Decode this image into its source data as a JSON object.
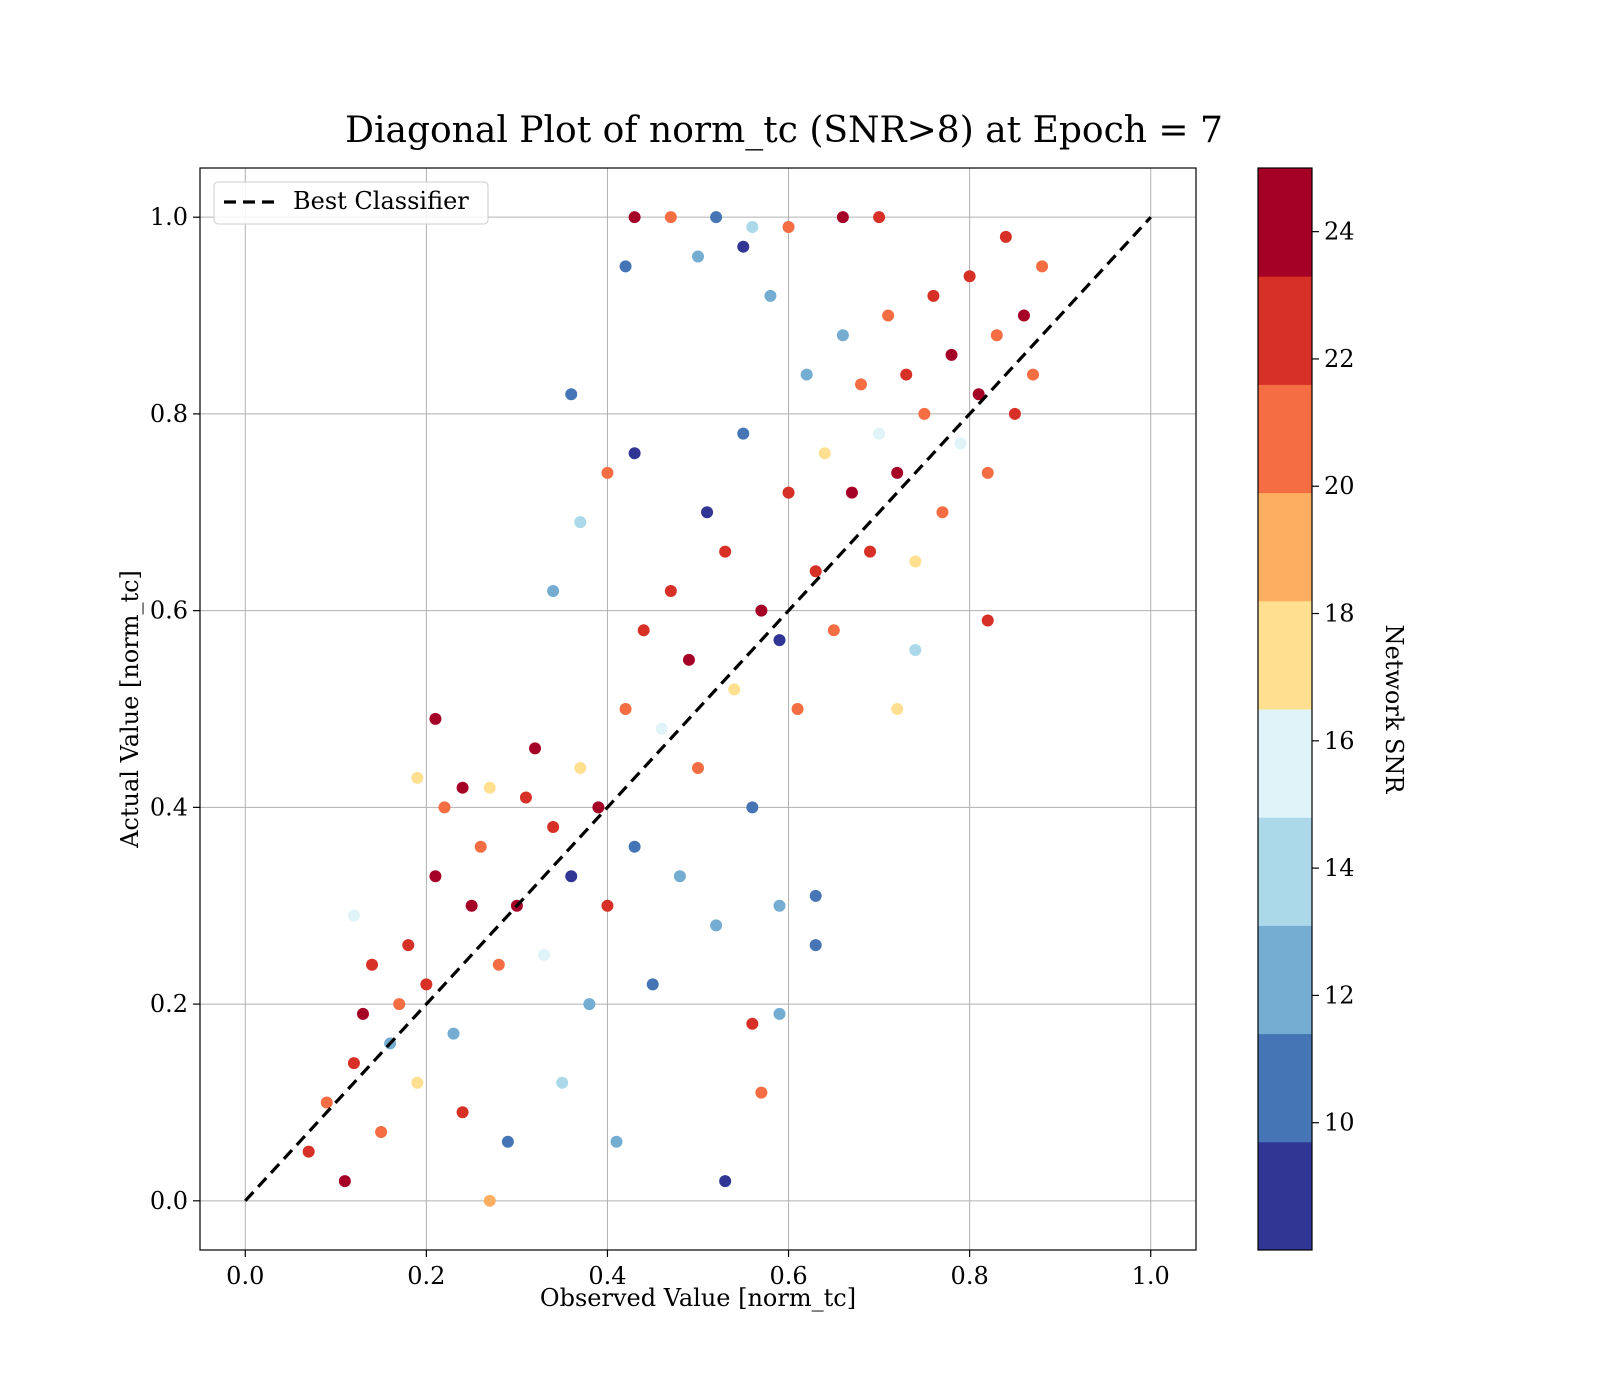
{
  "chart_data": {
    "type": "scatter",
    "title": "Diagonal Plot of norm_tc (SNR>8) at Epoch = 7",
    "xlabel": "Observed Value [norm_tc]",
    "ylabel": "Actual Value [norm_tc]",
    "xlim": [
      -0.05,
      1.05
    ],
    "ylim": [
      -0.05,
      1.05
    ],
    "xticks": [
      0.0,
      0.2,
      0.4,
      0.6,
      0.8,
      1.0
    ],
    "yticks": [
      0.0,
      0.2,
      0.4,
      0.6,
      0.8,
      1.0
    ],
    "x_tick_labels": [
      "0.0",
      "0.2",
      "0.4",
      "0.6",
      "0.8",
      "1.0"
    ],
    "y_tick_labels": [
      "0.0",
      "0.2",
      "0.4",
      "0.6",
      "0.8",
      "1.0"
    ],
    "grid": true,
    "legend": {
      "placement": "upper-left",
      "entries": [
        {
          "label": "Best Classifier",
          "style": "dashed",
          "color": "#000000"
        }
      ]
    },
    "reference_line": {
      "name": "Best Classifier",
      "x": [
        0.0,
        1.0
      ],
      "y": [
        0.0,
        1.0
      ]
    },
    "colorbar": {
      "label": "Network SNR",
      "range": [
        8,
        25
      ],
      "ticks": [
        10,
        12,
        14,
        16,
        18,
        20,
        22,
        24
      ],
      "tick_labels": [
        "10",
        "12",
        "14",
        "16",
        "18",
        "20",
        "22",
        "24"
      ],
      "colors": [
        "#313695",
        "#4575b4",
        "#74add1",
        "#abd9e9",
        "#e0f3f8",
        "#fee090",
        "#fdae61",
        "#f46d43",
        "#d73027",
        "#a50026"
      ]
    },
    "series": [
      {
        "points": [
          [
            0.11,
            0.02,
            24
          ],
          [
            0.07,
            0.05,
            22
          ],
          [
            0.09,
            0.1,
            20
          ],
          [
            0.12,
            0.14,
            23
          ],
          [
            0.13,
            0.19,
            24
          ],
          [
            0.14,
            0.24,
            22
          ],
          [
            0.15,
            0.07,
            20
          ],
          [
            0.16,
            0.16,
            12
          ],
          [
            0.17,
            0.2,
            21
          ],
          [
            0.18,
            0.26,
            22
          ],
          [
            0.19,
            0.12,
            18
          ],
          [
            0.2,
            0.22,
            22
          ],
          [
            0.21,
            0.33,
            24
          ],
          [
            0.22,
            0.4,
            21
          ],
          [
            0.23,
            0.17,
            12
          ],
          [
            0.24,
            0.09,
            22
          ],
          [
            0.25,
            0.3,
            24
          ],
          [
            0.26,
            0.36,
            20
          ],
          [
            0.27,
            0.42,
            18
          ],
          [
            0.28,
            0.24,
            21
          ],
          [
            0.29,
            0.06,
            11
          ],
          [
            0.3,
            0.3,
            24
          ],
          [
            0.31,
            0.41,
            22
          ],
          [
            0.32,
            0.46,
            24
          ],
          [
            0.33,
            0.25,
            16
          ],
          [
            0.34,
            0.38,
            23
          ],
          [
            0.35,
            0.12,
            14
          ],
          [
            0.36,
            0.33,
            9
          ],
          [
            0.37,
            0.44,
            17
          ],
          [
            0.38,
            0.2,
            13
          ],
          [
            0.39,
            0.4,
            24
          ],
          [
            0.4,
            0.3,
            22
          ],
          [
            0.41,
            0.06,
            12
          ],
          [
            0.42,
            0.5,
            20
          ],
          [
            0.43,
            0.36,
            10
          ],
          [
            0.44,
            0.58,
            23
          ],
          [
            0.45,
            0.22,
            11
          ],
          [
            0.46,
            0.48,
            16
          ],
          [
            0.47,
            0.62,
            22
          ],
          [
            0.48,
            0.33,
            13
          ],
          [
            0.49,
            0.55,
            24
          ],
          [
            0.5,
            0.44,
            21
          ],
          [
            0.51,
            0.7,
            9
          ],
          [
            0.52,
            0.28,
            12
          ],
          [
            0.53,
            0.66,
            22
          ],
          [
            0.54,
            0.52,
            18
          ],
          [
            0.55,
            0.78,
            10
          ],
          [
            0.56,
            0.4,
            11
          ],
          [
            0.57,
            0.6,
            24
          ],
          [
            0.58,
            0.92,
            12
          ],
          [
            0.59,
            0.57,
            9
          ],
          [
            0.6,
            0.72,
            22
          ],
          [
            0.61,
            0.5,
            20
          ],
          [
            0.62,
            0.84,
            13
          ],
          [
            0.63,
            0.64,
            22
          ],
          [
            0.64,
            0.76,
            18
          ],
          [
            0.65,
            0.58,
            21
          ],
          [
            0.66,
            0.88,
            12
          ],
          [
            0.67,
            0.72,
            24
          ],
          [
            0.68,
            0.83,
            21
          ],
          [
            0.69,
            0.66,
            22
          ],
          [
            0.7,
            0.78,
            16
          ],
          [
            0.71,
            0.9,
            20
          ],
          [
            0.72,
            0.74,
            24
          ],
          [
            0.73,
            0.84,
            22
          ],
          [
            0.74,
            0.65,
            18
          ],
          [
            0.75,
            0.8,
            21
          ],
          [
            0.76,
            0.92,
            23
          ],
          [
            0.77,
            0.7,
            20
          ],
          [
            0.78,
            0.86,
            24
          ],
          [
            0.79,
            0.77,
            16
          ],
          [
            0.8,
            0.94,
            22
          ],
          [
            0.81,
            0.82,
            24
          ],
          [
            0.82,
            0.74,
            21
          ],
          [
            0.83,
            0.88,
            20
          ],
          [
            0.84,
            0.98,
            23
          ],
          [
            0.85,
            0.8,
            22
          ],
          [
            0.86,
            0.9,
            24
          ],
          [
            0.87,
            0.84,
            21
          ],
          [
            0.88,
            0.95,
            20
          ],
          [
            0.43,
            1.0,
            24
          ],
          [
            0.47,
            1.0,
            21
          ],
          [
            0.52,
            1.0,
            11
          ],
          [
            0.56,
            0.99,
            14
          ],
          [
            0.6,
            0.99,
            20
          ],
          [
            0.66,
            1.0,
            24
          ],
          [
            0.7,
            1.0,
            22
          ],
          [
            0.42,
            0.95,
            10
          ],
          [
            0.5,
            0.96,
            13
          ],
          [
            0.55,
            0.97,
            9
          ],
          [
            0.36,
            0.82,
            10
          ],
          [
            0.43,
            0.76,
            9
          ],
          [
            0.4,
            0.74,
            20
          ],
          [
            0.37,
            0.69,
            14
          ],
          [
            0.34,
            0.62,
            12
          ],
          [
            0.21,
            0.49,
            24
          ],
          [
            0.19,
            0.43,
            18
          ],
          [
            0.24,
            0.42,
            24
          ],
          [
            0.12,
            0.29,
            16
          ],
          [
            0.63,
            0.31,
            10
          ],
          [
            0.63,
            0.26,
            11
          ],
          [
            0.82,
            0.59,
            23
          ],
          [
            0.74,
            0.56,
            14
          ],
          [
            0.72,
            0.5,
            18
          ],
          [
            0.59,
            0.3,
            12
          ],
          [
            0.59,
            0.19,
            12
          ],
          [
            0.56,
            0.18,
            23
          ],
          [
            0.57,
            0.11,
            21
          ],
          [
            0.53,
            0.02,
            9
          ],
          [
            0.27,
            0.0,
            19
          ]
        ]
      }
    ]
  }
}
